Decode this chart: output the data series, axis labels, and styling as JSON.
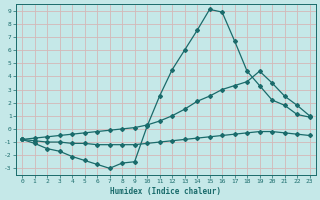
{
  "xlabel": "Humidex (Indice chaleur)",
  "bg_color": "#c5e8e8",
  "grid_color": "#b0d4d4",
  "line_color": "#1a6b6b",
  "xlim": [
    -0.5,
    23.5
  ],
  "ylim": [
    -3.5,
    9.5
  ],
  "xticks": [
    0,
    1,
    2,
    3,
    4,
    5,
    6,
    7,
    8,
    9,
    10,
    11,
    12,
    13,
    14,
    15,
    16,
    17,
    18,
    19,
    20,
    21,
    22,
    23
  ],
  "yticks": [
    -3,
    -2,
    -1,
    0,
    1,
    2,
    3,
    4,
    5,
    6,
    7,
    8,
    9
  ],
  "line1_x": [
    0,
    1,
    2,
    3,
    4,
    5,
    6,
    7,
    8,
    9,
    10,
    11,
    12,
    13,
    14,
    15,
    16,
    17,
    18,
    19,
    20,
    21,
    22,
    23
  ],
  "line1_y": [
    -0.8,
    -1.1,
    -1.5,
    -1.7,
    -2.1,
    -2.4,
    -2.7,
    -3.0,
    -2.6,
    -2.5,
    0.2,
    2.5,
    4.5,
    6.0,
    7.5,
    9.1,
    8.9,
    6.7,
    4.4,
    3.3,
    2.2,
    1.8,
    1.1,
    0.9
  ],
  "line2_x": [
    0,
    1,
    2,
    3,
    4,
    5,
    6,
    7,
    8,
    9,
    10,
    11,
    12,
    13,
    14,
    15,
    16,
    17,
    18,
    19,
    20,
    21,
    22,
    23
  ],
  "line2_y": [
    -0.8,
    -0.7,
    -0.6,
    -0.5,
    -0.4,
    -0.3,
    -0.2,
    -0.1,
    0.0,
    0.1,
    0.3,
    0.6,
    1.0,
    1.5,
    2.1,
    2.5,
    3.0,
    3.3,
    3.6,
    4.4,
    3.5,
    2.5,
    1.8,
    1.0
  ],
  "line3_x": [
    0,
    1,
    2,
    3,
    4,
    5,
    6,
    7,
    8,
    9,
    10,
    11,
    12,
    13,
    14,
    15,
    16,
    17,
    18,
    19,
    20,
    21,
    22,
    23
  ],
  "line3_y": [
    -0.8,
    -0.9,
    -1.0,
    -1.0,
    -1.1,
    -1.1,
    -1.2,
    -1.2,
    -1.2,
    -1.2,
    -1.1,
    -1.0,
    -0.9,
    -0.8,
    -0.7,
    -0.6,
    -0.5,
    -0.4,
    -0.3,
    -0.2,
    -0.2,
    -0.3,
    -0.4,
    -0.5
  ]
}
